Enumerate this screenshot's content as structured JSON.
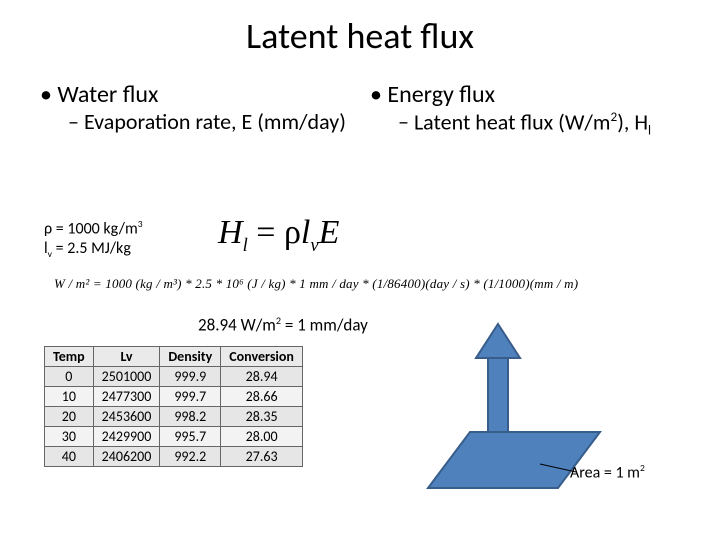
{
  "title": "Latent heat flux",
  "left": {
    "heading": "Water flux",
    "sub": "Evaporation rate, E (mm/day)"
  },
  "right": {
    "heading": "Energy flux",
    "sub_pre": "Latent heat flux (W/m",
    "sub_sup": "2",
    "sub_post": "), H",
    "sub_subscript": "l"
  },
  "constants": {
    "rho_label": "ρ = 1000 kg/m",
    "rho_sup": "3",
    "lv_pre": "l",
    "lv_sub": "v",
    "lv_post": " = 2.5 MJ/kg"
  },
  "equation": {
    "H": "H",
    "l": "l",
    "eq": " = ",
    "rho": "ρ",
    "lv_l": "l",
    "lv_v": "v",
    "E": "E"
  },
  "unitline": "W / m² = 1000 (kg / m³) * 2.5 * 10⁶ (J / kg) * 1 mm / day * (1/86400)(day / s) * (1/1000)(mm / m)",
  "conversion_label_pre": "28.94 W/m",
  "conversion_label_sup": "2",
  "conversion_label_post": " = 1 mm/day",
  "table": {
    "columns": [
      "Temp",
      "Lv",
      "Density",
      "Conversion"
    ],
    "rows": [
      [
        "0",
        "2501000",
        "999.9",
        "28.94"
      ],
      [
        "10",
        "2477300",
        "999.7",
        "28.66"
      ],
      [
        "20",
        "2453600",
        "998.2",
        "28.35"
      ],
      [
        "30",
        "2429900",
        "995.7",
        "28.00"
      ],
      [
        "40",
        "2406200",
        "992.2",
        "27.63"
      ]
    ],
    "header_bg": "#eaeaea",
    "row_bg_a": "#e6e6e6",
    "row_bg_b": "#f3f3f3",
    "border_color": "#666666"
  },
  "diagram": {
    "parallelogram_fill": "#4f81bd",
    "parallelogram_stroke": "#385d8a",
    "arrow_fill": "#4f81bd",
    "arrow_stroke": "#385d8a",
    "callout_line_color": "#000000"
  },
  "area_label_pre": "Area = 1 m",
  "area_label_sup": "2"
}
